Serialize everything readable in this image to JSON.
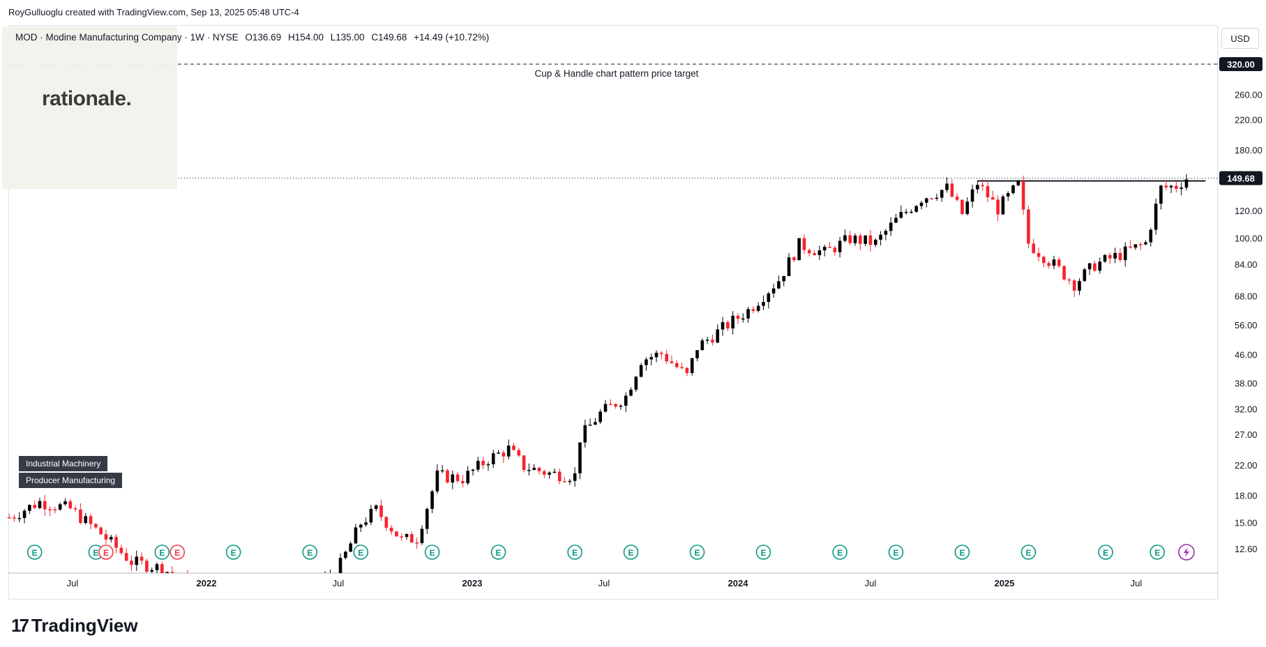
{
  "attribution": "RoyGulluoglu created with TradingView.com, Sep 13, 2025 05:48 UTC-4",
  "symbol": {
    "name": "MOD · Modine Manufacturing Company · 1W · NYSE",
    "open": "O136.69",
    "high": "H154.00",
    "low": "L135.00",
    "close": "C149.68",
    "change": "+14.49 (+10.72%)"
  },
  "logo_text": "rationale.",
  "currency": "USD",
  "industry_tags": [
    "Industrial Machinery",
    "Producer Manufacturing"
  ],
  "brand": "TradingView",
  "colors": {
    "up": "#000000",
    "down": "#f7232e",
    "earnings": "#089981",
    "dividend": "#f23645",
    "event": "#9c27b0",
    "accent": "#131722"
  },
  "chart_data": {
    "type": "candlestick",
    "timeframe": "1W",
    "y_scale": "log",
    "y_ticks": [
      12.6,
      15.0,
      18.0,
      22.0,
      27.0,
      32.0,
      38.0,
      46.0,
      56.0,
      68.0,
      84.0,
      100.0,
      120.0,
      149.68,
      180.0,
      220.0,
      260.0,
      320.0
    ],
    "y_tick_labels": [
      "12.60",
      "15.00",
      "18.00",
      "22.00",
      "27.00",
      "32.00",
      "38.00",
      "46.00",
      "56.00",
      "68.00",
      "84.00",
      "100.00",
      "120.00",
      "149.68",
      "180.00",
      "220.00",
      "260.00",
      "320.00"
    ],
    "x_ticks": [
      {
        "label": "Jul",
        "date": "2021-07-01",
        "bold": false
      },
      {
        "label": "2022",
        "date": "2022-01-01",
        "bold": true
      },
      {
        "label": "Jul",
        "date": "2022-07-01",
        "bold": false
      },
      {
        "label": "2023",
        "date": "2023-01-01",
        "bold": true
      },
      {
        "label": "Jul",
        "date": "2023-07-01",
        "bold": false
      },
      {
        "label": "2024",
        "date": "2024-01-01",
        "bold": true
      },
      {
        "label": "Jul",
        "date": "2024-07-01",
        "bold": false
      },
      {
        "label": "2025",
        "date": "2025-01-01",
        "bold": true
      },
      {
        "label": "Jul",
        "date": "2025-07-01",
        "bold": false
      }
    ],
    "x_range": [
      "2021-04-05",
      "2025-10-13"
    ],
    "price_series": [
      {
        "date": "2021-04-05",
        "close": 15.6
      },
      {
        "date": "2021-05-17",
        "close": 17.3
      },
      {
        "date": "2021-06-28",
        "close": 16.5
      },
      {
        "date": "2021-08-09",
        "close": 14.0
      },
      {
        "date": "2021-09-20",
        "close": 11.6
      },
      {
        "date": "2021-11-01",
        "close": 11.1
      },
      {
        "date": "2021-12-13",
        "close": 9.9
      },
      {
        "date": "2022-01-24",
        "close": 9.0
      },
      {
        "date": "2022-03-07",
        "close": 9.4
      },
      {
        "date": "2022-04-18",
        "close": 8.3
      },
      {
        "date": "2022-05-30",
        "close": 9.6
      },
      {
        "date": "2022-07-04",
        "close": 11.4
      },
      {
        "date": "2022-08-01",
        "close": 15.0
      },
      {
        "date": "2022-08-22",
        "close": 16.4
      },
      {
        "date": "2022-09-26",
        "close": 13.4
      },
      {
        "date": "2022-10-17",
        "close": 13.6
      },
      {
        "date": "2022-11-14",
        "close": 20.6
      },
      {
        "date": "2022-12-19",
        "close": 20.2
      },
      {
        "date": "2023-01-23",
        "close": 23.0
      },
      {
        "date": "2023-02-20",
        "close": 24.6
      },
      {
        "date": "2023-03-13",
        "close": 21.9
      },
      {
        "date": "2023-04-17",
        "close": 20.9
      },
      {
        "date": "2023-05-22",
        "close": 20.6
      },
      {
        "date": "2023-05-29",
        "close": 26.5
      },
      {
        "date": "2023-06-26",
        "close": 31.2
      },
      {
        "date": "2023-07-31",
        "close": 35.0
      },
      {
        "date": "2023-08-21",
        "close": 44.6
      },
      {
        "date": "2023-09-18",
        "close": 46.5
      },
      {
        "date": "2023-10-23",
        "close": 40.0
      },
      {
        "date": "2023-11-06",
        "close": 48.5
      },
      {
        "date": "2023-12-11",
        "close": 55.0
      },
      {
        "date": "2024-01-15",
        "close": 62.0
      },
      {
        "date": "2024-02-26",
        "close": 76.0
      },
      {
        "date": "2024-03-25",
        "close": 96.0
      },
      {
        "date": "2024-04-29",
        "close": 91.0
      },
      {
        "date": "2024-06-03",
        "close": 100.0
      },
      {
        "date": "2024-07-08",
        "close": 97.0
      },
      {
        "date": "2024-08-05",
        "close": 113.0
      },
      {
        "date": "2024-09-09",
        "close": 131.0
      },
      {
        "date": "2024-10-14",
        "close": 140.0
      },
      {
        "date": "2024-11-04",
        "close": 118.0
      },
      {
        "date": "2024-11-25",
        "close": 145.0
      },
      {
        "date": "2024-12-23",
        "close": 122.0
      },
      {
        "date": "2025-01-20",
        "close": 143.0
      },
      {
        "date": "2025-02-03",
        "close": 97.0
      },
      {
        "date": "2025-03-10",
        "close": 84.0
      },
      {
        "date": "2025-04-07",
        "close": 74.0
      },
      {
        "date": "2025-05-05",
        "close": 84.0
      },
      {
        "date": "2025-06-09",
        "close": 90.0
      },
      {
        "date": "2025-07-14",
        "close": 97.0
      },
      {
        "date": "2025-08-04",
        "close": 140.0
      },
      {
        "date": "2025-08-25",
        "close": 142.0
      },
      {
        "date": "2025-09-08",
        "close": 149.68
      }
    ],
    "last_price": 149.68,
    "target_price": 320.0,
    "annotations": [
      {
        "text": "Cup & Handle chart pattern price target",
        "price": 320.0
      }
    ],
    "resistance_line": {
      "price": 149.68,
      "start": "2024-11-25",
      "end": "2025-09-15"
    },
    "earnings_markers": [
      "2021-05-10",
      "2021-08-02",
      "2021-11-01",
      "2022-02-07",
      "2022-05-23",
      "2022-08-01",
      "2022-11-07",
      "2023-02-06",
      "2023-05-22",
      "2023-08-07",
      "2023-11-06",
      "2024-02-05",
      "2024-05-20",
      "2024-08-05",
      "2024-11-04",
      "2025-02-03",
      "2025-05-20",
      "2025-07-30"
    ],
    "dividend_markers": [
      "2021-08-16",
      "2021-11-22"
    ],
    "event_marker": "2025-09-08",
    "earnings_label": "E"
  }
}
